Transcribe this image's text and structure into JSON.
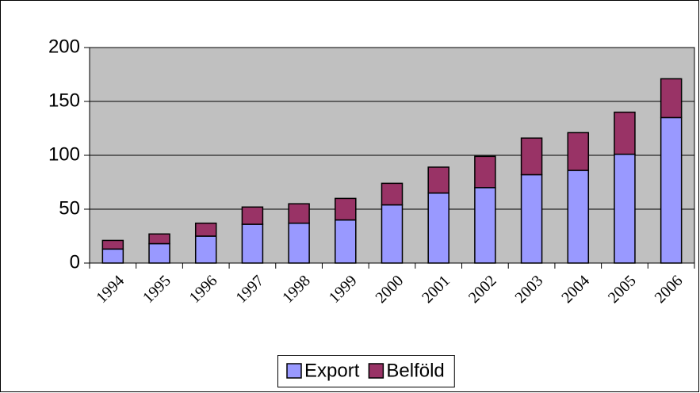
{
  "chart_data": {
    "type": "stacked_bar",
    "categories": [
      "1994",
      "1995",
      "1996",
      "1997",
      "1998",
      "1999",
      "2000",
      "2001",
      "2002",
      "2003",
      "2004",
      "2005",
      "2006"
    ],
    "series": [
      {
        "name": "Export",
        "color": "#9999ff",
        "values": [
          13,
          18,
          25,
          36,
          37,
          40,
          54,
          65,
          70,
          82,
          86,
          101,
          135
        ]
      },
      {
        "name": "Belföld",
        "color": "#993366",
        "values": [
          8,
          9,
          12,
          16,
          18,
          20,
          20,
          24,
          29,
          34,
          35,
          39,
          36
        ]
      }
    ],
    "ylim": [
      0,
      200
    ],
    "yticks": [
      0,
      50,
      100,
      150,
      200
    ],
    "grid": true,
    "plot_background": "#c0c0c0",
    "legend": "bottom"
  }
}
